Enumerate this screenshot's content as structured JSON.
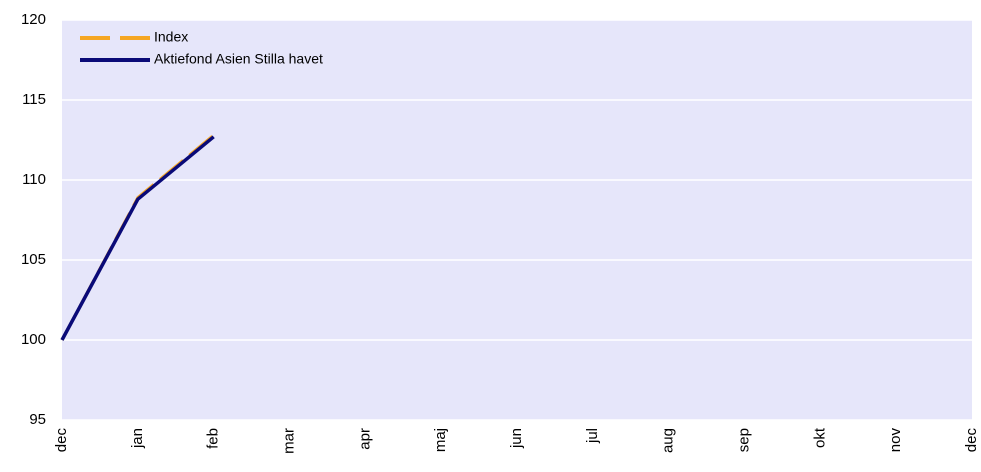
{
  "chart_data": {
    "type": "line",
    "categories": [
      "dec",
      "jan",
      "feb",
      "mar",
      "apr",
      "maj",
      "jun",
      "jul",
      "aug",
      "sep",
      "okt",
      "nov",
      "dec"
    ],
    "series": [
      {
        "name": "Index",
        "color": "#f5a623",
        "dash": true,
        "values": [
          100,
          108.9,
          112.8,
          null,
          null,
          null,
          null,
          null,
          null,
          null,
          null,
          null,
          null
        ]
      },
      {
        "name": "Aktiefond Asien Stilla havet",
        "color": "#0a0a78",
        "dash": false,
        "values": [
          100,
          108.8,
          112.7,
          null,
          null,
          null,
          null,
          null,
          null,
          null,
          null,
          null,
          null
        ]
      }
    ],
    "ylim": [
      95,
      120
    ],
    "yticks": [
      95,
      100,
      105,
      110,
      115,
      120
    ],
    "grid": true,
    "background": "#e6e6fa"
  }
}
